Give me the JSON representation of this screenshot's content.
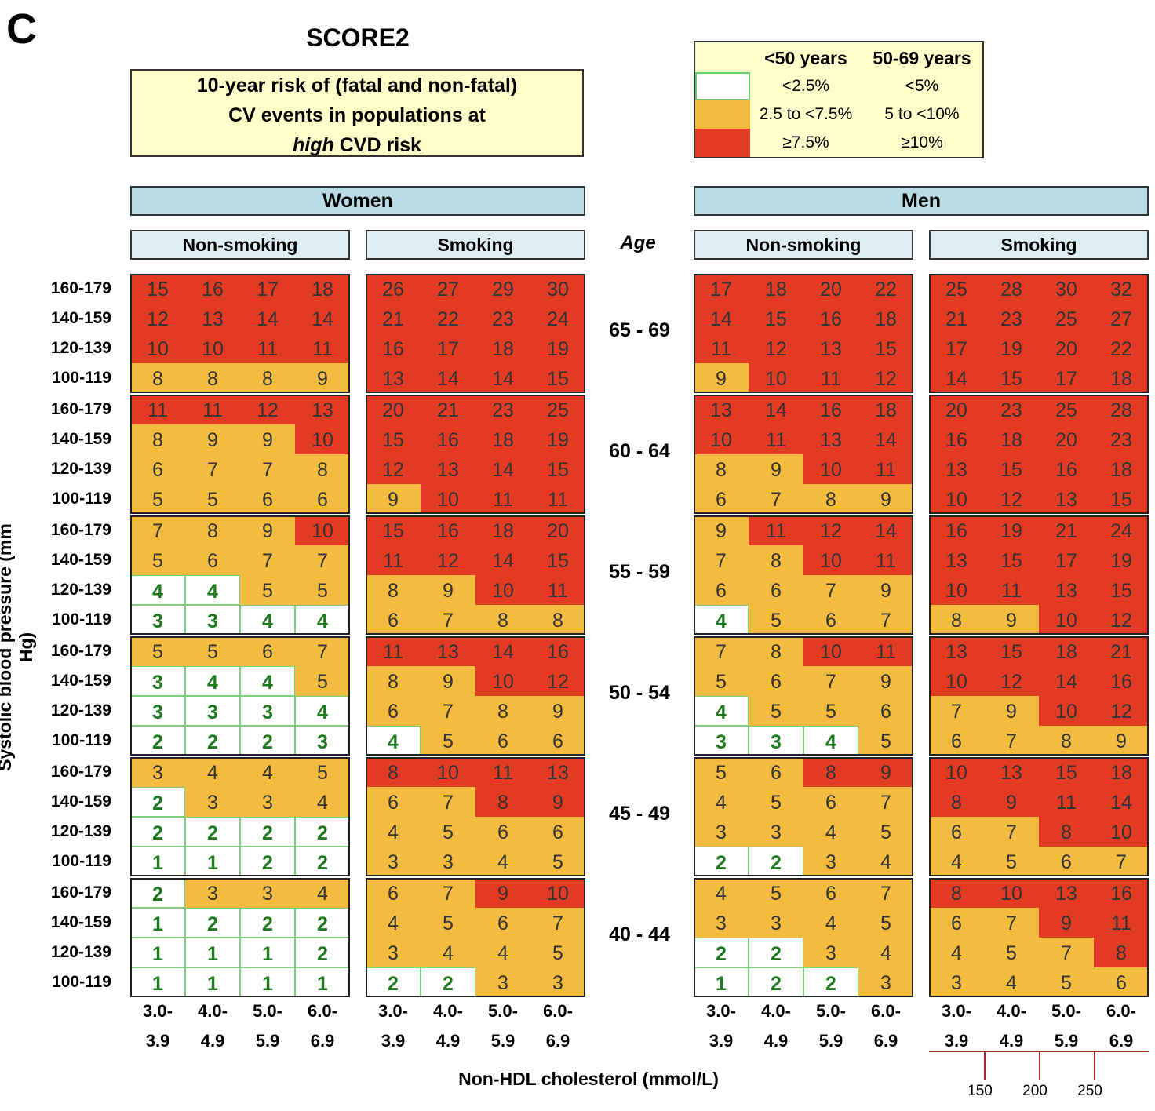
{
  "panel_label": "C",
  "title": "SCORE2",
  "description": {
    "line1": "10-year risk of (fatal and non-fatal)",
    "line2": "CV events in populations at",
    "line3_italic": "high",
    "line3_rest": " CVD risk"
  },
  "legend": {
    "headers": [
      "<50 years",
      "50-69 years"
    ],
    "rows": [
      {
        "color": "#ffffff",
        "under50": "<2.5%",
        "age50_69": "<5%"
      },
      {
        "color": "#f3bc3f",
        "under50": "2.5 to <7.5%",
        "age50_69": "5 to <10%"
      },
      {
        "color": "#e33a24",
        "under50": "≥7.5%",
        "age50_69": "≥10%"
      }
    ]
  },
  "colors": {
    "low": "#ffffff",
    "mid": "#f3bc3f",
    "high": "#e33a24",
    "sex_header": "#b9dbe6",
    "smoke_header": "#ddeef4",
    "box_bg": "#fefecb",
    "mg_axis": "#a52a2a"
  },
  "labels": {
    "women": "Women",
    "men": "Men",
    "non_smoking": "Non-smoking",
    "smoking": "Smoking",
    "age": "Age",
    "y_axis": "Systolic blood pressure (mm Hg)",
    "x_axis": "Non-HDL cholesterol (mmol/L)"
  },
  "chart_data": {
    "type": "table",
    "ages": [
      "65 - 69",
      "60 - 64",
      "55 - 59",
      "50 - 54",
      "45 - 49",
      "40 - 44"
    ],
    "bp_rows": [
      "160-179",
      "140-159",
      "120-139",
      "100-119"
    ],
    "chol_columns": [
      [
        "3.0-",
        "3.9"
      ],
      [
        "4.0-",
        "4.9"
      ],
      [
        "5.0-",
        "5.9"
      ],
      [
        "6.0-",
        "6.9"
      ]
    ],
    "mg_dl_ticks": [
      "150",
      "200",
      "250"
    ],
    "groups": [
      {
        "sex": "Women",
        "smoking": "Non-smoking",
        "values": [
          [
            [
              15,
              16,
              17,
              18
            ],
            [
              12,
              13,
              14,
              14
            ],
            [
              10,
              10,
              11,
              11
            ],
            [
              8,
              8,
              8,
              9
            ]
          ],
          [
            [
              11,
              11,
              12,
              13
            ],
            [
              8,
              9,
              9,
              10
            ],
            [
              6,
              7,
              7,
              8
            ],
            [
              5,
              5,
              6,
              6
            ]
          ],
          [
            [
              7,
              8,
              9,
              10
            ],
            [
              5,
              6,
              7,
              7
            ],
            [
              4,
              4,
              5,
              5
            ],
            [
              3,
              3,
              4,
              4
            ]
          ],
          [
            [
              5,
              5,
              6,
              7
            ],
            [
              3,
              4,
              4,
              5
            ],
            [
              3,
              3,
              3,
              4
            ],
            [
              2,
              2,
              2,
              3
            ]
          ],
          [
            [
              3,
              4,
              4,
              5
            ],
            [
              2,
              3,
              3,
              4
            ],
            [
              2,
              2,
              2,
              2
            ],
            [
              1,
              1,
              2,
              2
            ]
          ],
          [
            [
              2,
              3,
              3,
              4
            ],
            [
              1,
              2,
              2,
              2
            ],
            [
              1,
              1,
              1,
              2
            ],
            [
              1,
              1,
              1,
              1
            ]
          ]
        ]
      },
      {
        "sex": "Women",
        "smoking": "Smoking",
        "values": [
          [
            [
              26,
              27,
              29,
              30
            ],
            [
              21,
              22,
              23,
              24
            ],
            [
              16,
              17,
              18,
              19
            ],
            [
              13,
              14,
              14,
              15
            ]
          ],
          [
            [
              20,
              21,
              23,
              25
            ],
            [
              15,
              16,
              18,
              19
            ],
            [
              12,
              13,
              14,
              15
            ],
            [
              9,
              10,
              11,
              11
            ]
          ],
          [
            [
              15,
              16,
              18,
              20
            ],
            [
              11,
              12,
              14,
              15
            ],
            [
              8,
              9,
              10,
              11
            ],
            [
              6,
              7,
              8,
              8
            ]
          ],
          [
            [
              11,
              13,
              14,
              16
            ],
            [
              8,
              9,
              10,
              12
            ],
            [
              6,
              7,
              8,
              9
            ],
            [
              4,
              5,
              6,
              6
            ]
          ],
          [
            [
              8,
              10,
              11,
              13
            ],
            [
              6,
              7,
              8,
              9
            ],
            [
              4,
              5,
              6,
              6
            ],
            [
              3,
              3,
              4,
              5
            ]
          ],
          [
            [
              6,
              7,
              9,
              10
            ],
            [
              4,
              5,
              6,
              7
            ],
            [
              3,
              4,
              4,
              5
            ],
            [
              2,
              2,
              3,
              3
            ]
          ]
        ]
      },
      {
        "sex": "Men",
        "smoking": "Non-smoking",
        "values": [
          [
            [
              17,
              18,
              20,
              22
            ],
            [
              14,
              15,
              16,
              18
            ],
            [
              11,
              12,
              13,
              15
            ],
            [
              9,
              10,
              11,
              12
            ]
          ],
          [
            [
              13,
              14,
              16,
              18
            ],
            [
              10,
              11,
              13,
              14
            ],
            [
              8,
              9,
              10,
              11
            ],
            [
              6,
              7,
              8,
              9
            ]
          ],
          [
            [
              9,
              11,
              12,
              14
            ],
            [
              7,
              8,
              10,
              11
            ],
            [
              6,
              6,
              7,
              9
            ],
            [
              4,
              5,
              6,
              7
            ]
          ],
          [
            [
              7,
              8,
              10,
              11
            ],
            [
              5,
              6,
              7,
              9
            ],
            [
              4,
              5,
              5,
              6
            ],
            [
              3,
              3,
              4,
              5
            ]
          ],
          [
            [
              5,
              6,
              8,
              9
            ],
            [
              4,
              5,
              6,
              7
            ],
            [
              3,
              3,
              4,
              5
            ],
            [
              2,
              2,
              3,
              4
            ]
          ],
          [
            [
              4,
              5,
              6,
              7
            ],
            [
              3,
              3,
              4,
              5
            ],
            [
              2,
              2,
              3,
              4
            ],
            [
              1,
              2,
              2,
              3
            ]
          ]
        ]
      },
      {
        "sex": "Men",
        "smoking": "Smoking",
        "values": [
          [
            [
              25,
              28,
              30,
              32
            ],
            [
              21,
              23,
              25,
              27
            ],
            [
              17,
              19,
              20,
              22
            ],
            [
              14,
              15,
              17,
              18
            ]
          ],
          [
            [
              20,
              23,
              25,
              28
            ],
            [
              16,
              18,
              20,
              23
            ],
            [
              13,
              15,
              16,
              18
            ],
            [
              10,
              12,
              13,
              15
            ]
          ],
          [
            [
              16,
              19,
              21,
              24
            ],
            [
              13,
              15,
              17,
              19
            ],
            [
              10,
              11,
              13,
              15
            ],
            [
              8,
              9,
              10,
              12
            ]
          ],
          [
            [
              13,
              15,
              18,
              21
            ],
            [
              10,
              12,
              14,
              16
            ],
            [
              7,
              9,
              10,
              12
            ],
            [
              6,
              7,
              8,
              9
            ]
          ],
          [
            [
              10,
              13,
              15,
              18
            ],
            [
              8,
              9,
              11,
              14
            ],
            [
              6,
              7,
              8,
              10
            ],
            [
              4,
              5,
              6,
              7
            ]
          ],
          [
            [
              8,
              10,
              13,
              16
            ],
            [
              6,
              7,
              9,
              11
            ],
            [
              4,
              5,
              7,
              8
            ],
            [
              3,
              4,
              5,
              6
            ]
          ]
        ]
      }
    ]
  }
}
